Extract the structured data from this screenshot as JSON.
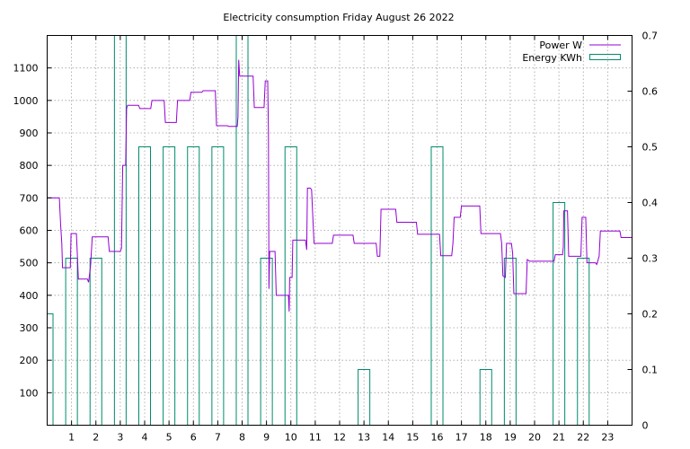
{
  "chart_data": {
    "type": "line",
    "title": "Electricity consumption Friday August 26 2022",
    "grid": true,
    "legend_position": "top-right",
    "xlim": [
      0,
      24
    ],
    "x_ticks": [
      1,
      2,
      3,
      4,
      5,
      6,
      7,
      8,
      9,
      10,
      11,
      12,
      13,
      14,
      15,
      16,
      17,
      18,
      19,
      20,
      21,
      22,
      23
    ],
    "y_left": {
      "ylim": [
        0,
        1200
      ],
      "ticks": [
        100,
        200,
        300,
        400,
        500,
        600,
        700,
        800,
        900,
        1000,
        1100
      ]
    },
    "y_right": {
      "ylim": [
        0,
        0.7
      ],
      "ticks": [
        0,
        0.1,
        0.2,
        0.3,
        0.4,
        0.5,
        0.6,
        0.7
      ]
    },
    "series": [
      {
        "name": "Power W",
        "type": "step",
        "axis": "left",
        "color": "#9400d3",
        "points": [
          [
            0.0,
            700
          ],
          [
            0.5,
            700
          ],
          [
            0.55,
            620
          ],
          [
            0.6,
            560
          ],
          [
            0.63,
            485
          ],
          [
            0.95,
            485
          ],
          [
            0.98,
            590
          ],
          [
            1.2,
            590
          ],
          [
            1.23,
            540
          ],
          [
            1.28,
            450
          ],
          [
            1.65,
            450
          ],
          [
            1.7,
            440
          ],
          [
            1.78,
            490
          ],
          [
            1.85,
            580
          ],
          [
            2.5,
            580
          ],
          [
            2.55,
            535
          ],
          [
            3.0,
            535
          ],
          [
            3.05,
            545
          ],
          [
            3.1,
            800
          ],
          [
            3.22,
            800
          ],
          [
            3.26,
            975
          ],
          [
            3.3,
            985
          ],
          [
            3.75,
            985
          ],
          [
            3.8,
            975
          ],
          [
            4.25,
            975
          ],
          [
            4.3,
            1000
          ],
          [
            4.8,
            1000
          ],
          [
            4.85,
            932
          ],
          [
            5.3,
            932
          ],
          [
            5.35,
            1000
          ],
          [
            5.85,
            1000
          ],
          [
            5.9,
            1025
          ],
          [
            6.35,
            1025
          ],
          [
            6.4,
            1030
          ],
          [
            6.9,
            1030
          ],
          [
            6.95,
            922
          ],
          [
            7.4,
            922
          ],
          [
            7.45,
            920
          ],
          [
            7.8,
            920
          ],
          [
            7.83,
            950
          ],
          [
            7.86,
            1125
          ],
          [
            7.9,
            1075
          ],
          [
            8.45,
            1075
          ],
          [
            8.5,
            978
          ],
          [
            8.9,
            978
          ],
          [
            8.95,
            1060
          ],
          [
            9.05,
            1060
          ],
          [
            9.08,
            900
          ],
          [
            9.1,
            420
          ],
          [
            9.13,
            535
          ],
          [
            9.35,
            535
          ],
          [
            9.4,
            400
          ],
          [
            9.9,
            400
          ],
          [
            9.93,
            350
          ],
          [
            9.95,
            455
          ],
          [
            10.05,
            455
          ],
          [
            10.08,
            570
          ],
          [
            10.6,
            570
          ],
          [
            10.65,
            540
          ],
          [
            10.68,
            730
          ],
          [
            10.8,
            730
          ],
          [
            10.85,
            725
          ],
          [
            10.95,
            560
          ],
          [
            11.7,
            560
          ],
          [
            11.75,
            585
          ],
          [
            12.55,
            585
          ],
          [
            12.6,
            560
          ],
          [
            13.5,
            560
          ],
          [
            13.55,
            520
          ],
          [
            13.65,
            520
          ],
          [
            13.7,
            665
          ],
          [
            14.3,
            665
          ],
          [
            14.35,
            625
          ],
          [
            15.15,
            625
          ],
          [
            15.2,
            588
          ],
          [
            16.1,
            588
          ],
          [
            16.15,
            522
          ],
          [
            16.6,
            522
          ],
          [
            16.65,
            560
          ],
          [
            16.7,
            640
          ],
          [
            16.95,
            640
          ],
          [
            17.0,
            675
          ],
          [
            17.75,
            675
          ],
          [
            17.8,
            590
          ],
          [
            18.6,
            590
          ],
          [
            18.65,
            560
          ],
          [
            18.7,
            460
          ],
          [
            18.8,
            455
          ],
          [
            18.85,
            560
          ],
          [
            19.05,
            560
          ],
          [
            19.1,
            530
          ],
          [
            19.15,
            405
          ],
          [
            19.65,
            405
          ],
          [
            19.7,
            510
          ],
          [
            19.8,
            505
          ],
          [
            20.8,
            505
          ],
          [
            20.85,
            525
          ],
          [
            21.15,
            525
          ],
          [
            21.18,
            550
          ],
          [
            21.2,
            660
          ],
          [
            21.35,
            660
          ],
          [
            21.4,
            520
          ],
          [
            21.9,
            520
          ],
          [
            21.95,
            640
          ],
          [
            22.1,
            640
          ],
          [
            22.15,
            500
          ],
          [
            22.5,
            500
          ],
          [
            22.55,
            495
          ],
          [
            22.65,
            520
          ],
          [
            22.7,
            598
          ],
          [
            23.5,
            598
          ],
          [
            23.55,
            578
          ],
          [
            24.0,
            578
          ]
        ]
      },
      {
        "name": "Energy KWh",
        "type": "bars",
        "axis": "right",
        "color": "#008b6b",
        "hours": [
          0,
          1,
          2,
          3,
          4,
          5,
          6,
          7,
          8,
          9,
          10,
          11,
          12,
          13,
          14,
          15,
          16,
          17,
          18,
          19,
          20,
          21,
          22,
          23
        ],
        "values": [
          0.2,
          0.3,
          0.3,
          0.7,
          0.5,
          0.5,
          0.5,
          0.5,
          0.7,
          0.3,
          0.5,
          0,
          0,
          0.1,
          0,
          0,
          0.5,
          0,
          0.1,
          0.3,
          0,
          0.4,
          0.3,
          0
        ]
      }
    ]
  }
}
